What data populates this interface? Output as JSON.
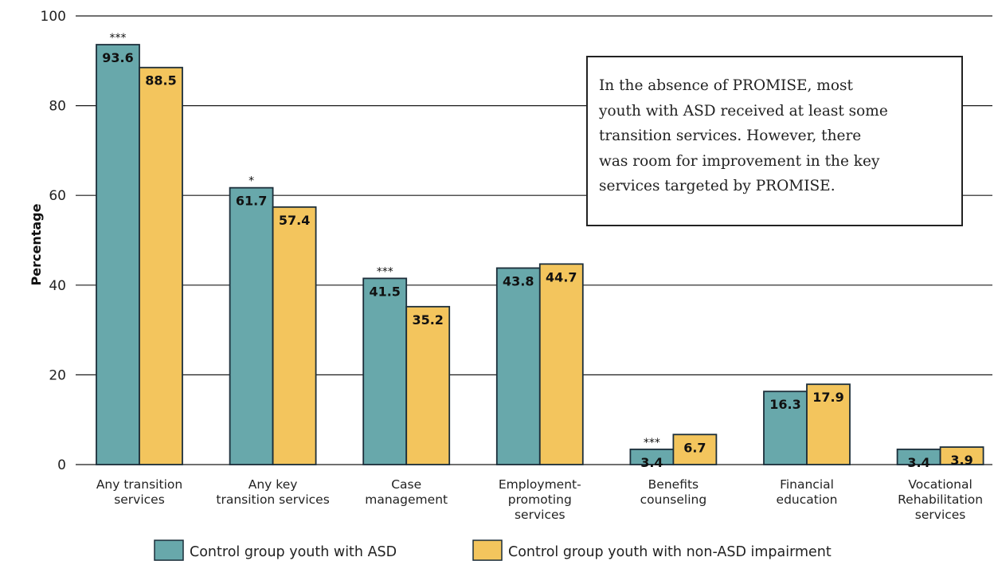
{
  "chart_data": {
    "type": "bar",
    "ylabel": "Percentage",
    "ylim": [
      0,
      100
    ],
    "yticks": [
      0,
      20,
      40,
      60,
      80,
      100
    ],
    "grid": true,
    "categories": [
      [
        "Any transition",
        "services"
      ],
      [
        "Any key",
        "transition services"
      ],
      [
        "Case",
        "management"
      ],
      [
        "Employment-",
        "promoting",
        "services"
      ],
      [
        "Benefits",
        "counseling"
      ],
      [
        "Financial",
        "education"
      ],
      [
        "Vocational",
        "Rehabilitation",
        "services"
      ]
    ],
    "series": [
      {
        "name": "Control group youth with ASD",
        "color": "#68a8ab",
        "values": [
          93.6,
          61.7,
          41.5,
          43.8,
          3.4,
          16.3,
          3.4
        ],
        "significance": [
          "***",
          "*",
          "***",
          "",
          "***",
          "",
          ""
        ]
      },
      {
        "name": "Control group youth with non-ASD impairment",
        "color": "#f3c55d",
        "values": [
          88.5,
          57.4,
          35.2,
          44.7,
          6.7,
          17.9,
          3.9
        ],
        "significance": [
          "",
          "",
          "",
          "",
          "",
          "",
          ""
        ]
      }
    ],
    "legend_position": "bottom",
    "annotation": "In the absence of PROMISE, most youth with ASD received at least some transition services. However, there was room for improvement in the key services targeted by PROMISE."
  },
  "callout": {
    "lines": [
      "In the absence of PROMISE, most",
      "youth with ASD received at least some",
      "transition services. However, there",
      "was room for improvement in the key",
      "services targeted by PROMISE."
    ]
  }
}
